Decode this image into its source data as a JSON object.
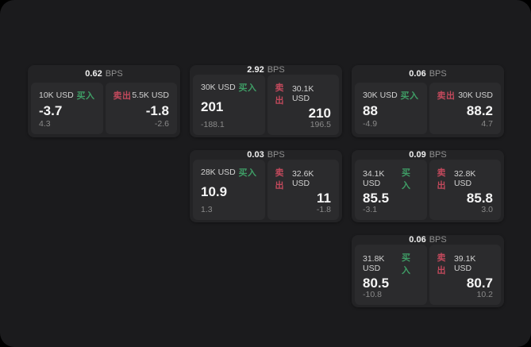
{
  "page": {
    "bg": "#1b1b1d",
    "card_bg": "#232325",
    "panel_bg": "#2b2b2d",
    "buy_color": "#3f9e66",
    "sell_color": "#c2495c"
  },
  "labels": {
    "bps": "BPS",
    "buy": "买入",
    "sell": "卖出"
  },
  "cards": [
    {
      "bps": "0.62",
      "buy": {
        "amount": "10K USD",
        "value": "-3.7",
        "delta": "4.3"
      },
      "sell": {
        "amount": "5.5K USD",
        "value": "-1.8",
        "delta": "-2.6"
      }
    },
    {
      "bps": "2.92",
      "buy": {
        "amount": "30K USD",
        "value": "201",
        "delta": "-188.1"
      },
      "sell": {
        "amount": "30.1K USD",
        "value": "210",
        "delta": "196.5"
      }
    },
    {
      "bps": "0.06",
      "buy": {
        "amount": "30K USD",
        "value": "88",
        "delta": "-4.9"
      },
      "sell": {
        "amount": "30K USD",
        "value": "88.2",
        "delta": "4.7"
      }
    },
    {
      "bps": "0.03",
      "buy": {
        "amount": "28K USD",
        "value": "10.9",
        "delta": "1.3"
      },
      "sell": {
        "amount": "32.6K USD",
        "value": "11",
        "delta": "-1.8"
      }
    },
    {
      "bps": "0.09",
      "buy": {
        "amount": "34.1K USD",
        "value": "85.5",
        "delta": "-3.1"
      },
      "sell": {
        "amount": "32.8K USD",
        "value": "85.8",
        "delta": "3.0"
      }
    },
    {
      "bps": "0.06",
      "buy": {
        "amount": "31.8K USD",
        "value": "80.5",
        "delta": "-10.8"
      },
      "sell": {
        "amount": "39.1K USD",
        "value": "80.7",
        "delta": "10.2"
      }
    }
  ]
}
